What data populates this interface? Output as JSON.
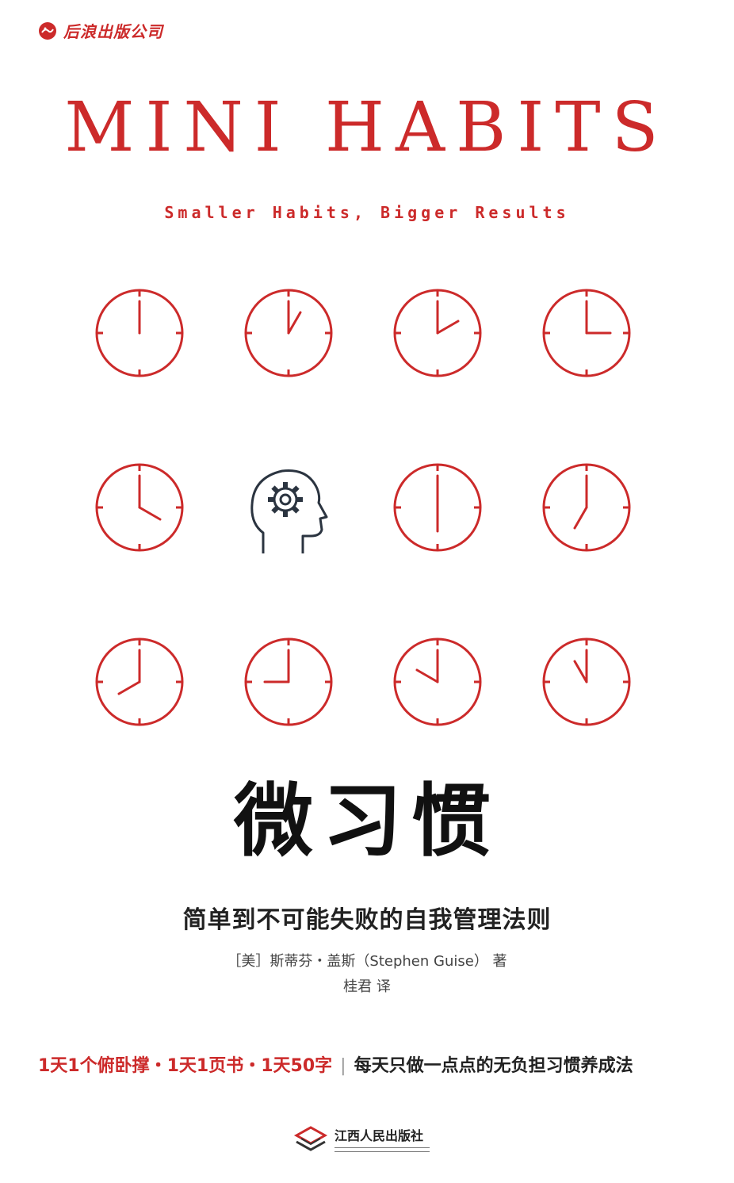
{
  "publisher": {
    "logo_icon": "wave-face-logo-icon",
    "name": "后浪出版公司"
  },
  "title_en": "MINI HABITS",
  "subtitle_en": "Smaller Habits, Bigger Results",
  "clocks": [
    {
      "hour": 12,
      "minute": 0
    },
    {
      "hour": 1,
      "minute": 0
    },
    {
      "hour": 2,
      "minute": 0
    },
    {
      "hour": 3,
      "minute": 0
    },
    {
      "hour": 4,
      "minute": 0
    },
    {
      "center_icon": "head-gear-icon"
    },
    {
      "hour": 6,
      "minute": 0
    },
    {
      "hour": 7,
      "minute": 0
    },
    {
      "hour": 8,
      "minute": 0
    },
    {
      "hour": 9,
      "minute": 0
    },
    {
      "hour": 10,
      "minute": 0
    },
    {
      "hour": 11,
      "minute": 0
    }
  ],
  "title_zh": "微习惯",
  "subtitle_zh": "简单到不可能失败的自我管理法则",
  "author_line": "［美］斯蒂芬・盖斯（Stephen Guise） 著",
  "translator_line": "桂君 译",
  "tagline": {
    "red_part": "1天1个俯卧撑・1天1页书・1天50字",
    "separator": "|",
    "dark_part": "每天只做一点点的无负担习惯养成法"
  },
  "bottom_publisher": {
    "logo_icon": "layered-chevron-logo-icon",
    "name": "江西人民出版社"
  },
  "colors": {
    "accent": "#cc2a2a",
    "text": "#111111",
    "icon_dark": "#2b3440"
  }
}
